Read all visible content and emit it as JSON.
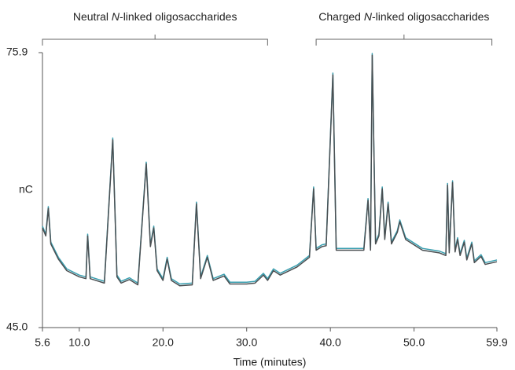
{
  "chart_data": {
    "type": "line",
    "y_label": "nC",
    "x_label": "Time (minutes)",
    "annotations": [
      {
        "parts": [
          "Neutral ",
          "N",
          "-linked oligosaccharides"
        ],
        "xrange": [
          5.6,
          32.5
        ]
      },
      {
        "parts": [
          "Charged ",
          "N",
          "-linked oligosaccharides"
        ],
        "xrange": [
          38.3,
          59.3
        ]
      }
    ],
    "xlim": [
      5.6,
      59.9
    ],
    "xticks": [
      5.6,
      {
        "value": 10,
        "label": "10.0"
      },
      {
        "value": 20,
        "label": "20.0"
      },
      {
        "value": 30,
        "label": "30.0"
      },
      {
        "value": 40,
        "label": "40.0"
      },
      {
        "value": 50,
        "label": "50.0"
      },
      59.9
    ],
    "ylim": [
      45,
      75.9
    ],
    "yticks": [
      {
        "value": 45,
        "label": "45.0"
      },
      75.9
    ],
    "grid": false,
    "x": [
      5.6,
      6.0,
      6.3,
      6.6,
      7.5,
      8.5,
      10.0,
      10.8,
      11.0,
      11.3,
      13.0,
      14.0,
      14.5,
      15.0,
      16.0,
      17.0,
      18.0,
      18.5,
      18.9,
      19.3,
      20.0,
      20.5,
      21.0,
      22.0,
      23.5,
      24.0,
      24.5,
      25.3,
      26.0,
      27.3,
      28.0,
      30.0,
      31.0,
      32.0,
      32.5,
      33.2,
      34.0,
      36.0,
      37.5,
      38.0,
      38.3,
      39.0,
      39.5,
      40.3,
      40.7,
      42.0,
      44.0,
      44.5,
      44.8,
      45.0,
      45.4,
      45.8,
      46.2,
      46.5,
      46.9,
      47.3,
      48.0,
      48.3,
      49.0,
      51.0,
      53.0,
      53.8,
      54.0,
      54.2,
      54.6,
      54.9,
      55.2,
      55.5,
      56.0,
      56.3,
      56.9,
      57.2,
      58.0,
      58.5,
      59.9
    ],
    "series": [
      {
        "color": "#3a9fb0",
        "values": [
          56.4,
          55.5,
          58.6,
          54.6,
          52.9,
          51.6,
          50.9,
          50.7,
          55.5,
          50.7,
          50.2,
          66.3,
          50.9,
          50.2,
          50.6,
          50.0,
          63.6,
          54.3,
          56.4,
          51.6,
          50.5,
          52.9,
          50.5,
          49.9,
          50.0,
          59.1,
          50.7,
          53.1,
          50.5,
          51.0,
          50.1,
          50.1,
          50.2,
          51.1,
          50.5,
          51.6,
          51.1,
          52.0,
          53.1,
          60.8,
          53.9,
          54.3,
          54.4,
          73.6,
          53.9,
          53.9,
          53.9,
          59.5,
          53.9,
          75.8,
          54.6,
          55.5,
          60.8,
          55.1,
          59.1,
          54.6,
          55.9,
          57.1,
          55.1,
          53.9,
          53.6,
          53.3,
          61.2,
          53.6,
          61.5,
          53.7,
          55.1,
          53.3,
          54.8,
          52.8,
          54.6,
          52.5,
          53.2,
          52.3,
          52.6
        ]
      },
      {
        "color": "#4a4f52",
        "values": [
          56.2,
          55.3,
          58.4,
          54.4,
          52.7,
          51.4,
          50.7,
          50.5,
          55.3,
          50.5,
          50.0,
          66.1,
          50.7,
          50.0,
          50.4,
          49.8,
          63.4,
          54.1,
          56.2,
          51.4,
          50.3,
          52.7,
          50.3,
          49.7,
          49.8,
          58.9,
          50.5,
          52.9,
          50.3,
          50.8,
          49.9,
          49.9,
          50.0,
          50.9,
          50.3,
          51.4,
          50.9,
          51.8,
          52.9,
          60.6,
          53.7,
          54.1,
          54.2,
          73.4,
          53.7,
          53.7,
          53.7,
          59.3,
          53.7,
          75.6,
          54.4,
          55.3,
          60.6,
          54.9,
          58.9,
          54.4,
          55.7,
          56.9,
          54.9,
          53.7,
          53.4,
          53.1,
          61.0,
          53.4,
          61.3,
          53.5,
          54.9,
          53.1,
          54.6,
          52.6,
          54.4,
          52.3,
          53.0,
          52.1,
          52.4
        ]
      }
    ]
  }
}
